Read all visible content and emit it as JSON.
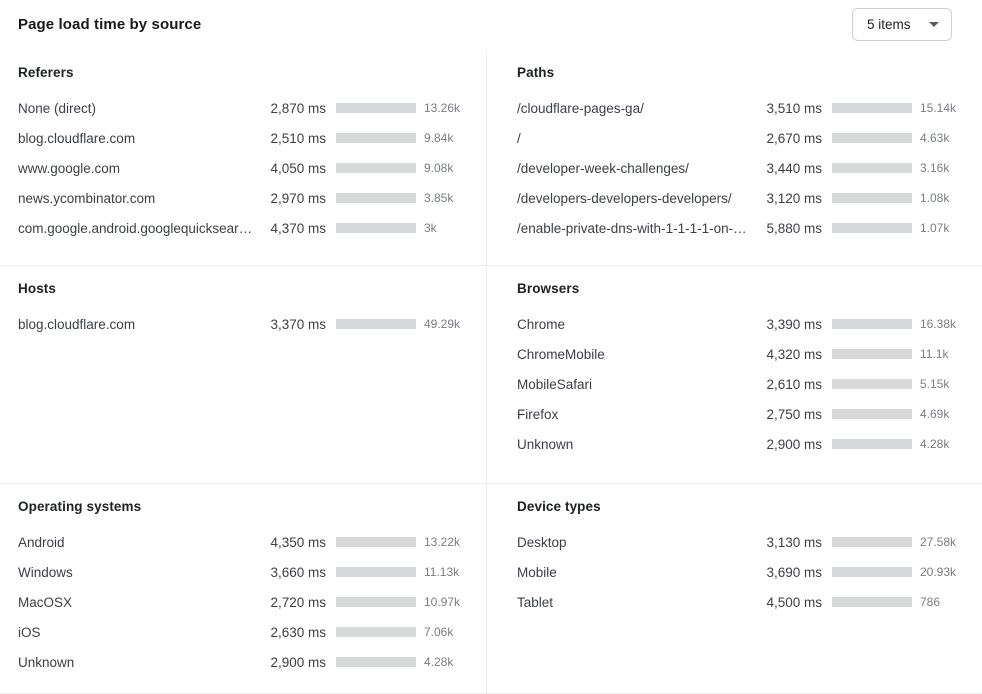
{
  "header": {
    "title": "Page load time by source",
    "dropdown": {
      "value": "5 items",
      "icon": "chevron-down"
    }
  },
  "colors": {
    "bar_fill": "#3172e9",
    "bar_track": "#d7d8da",
    "divider": "#ebecee",
    "count_text": "#787d84",
    "label_text": "#3b3f46"
  },
  "chart_data": [
    {
      "type": "bar",
      "id": "referers",
      "title": "Referers",
      "unit": "ms",
      "scale_max": 6600,
      "rows": [
        {
          "label": "None (direct)",
          "ms": 2870,
          "ms_display": "2,870 ms",
          "count": "13.26k"
        },
        {
          "label": "blog.cloudflare.com",
          "ms": 2510,
          "ms_display": "2,510 ms",
          "count": "9.84k"
        },
        {
          "label": "www.google.com",
          "ms": 4050,
          "ms_display": "4,050 ms",
          "count": "9.08k"
        },
        {
          "label": "news.ycombinator.com",
          "ms": 2970,
          "ms_display": "2,970 ms",
          "count": "3.85k"
        },
        {
          "label": "com.google.android.googlequicksearc…",
          "ms": 4370,
          "ms_display": "4,370 ms",
          "count": "3k"
        }
      ]
    },
    {
      "type": "bar",
      "id": "paths",
      "title": "Paths",
      "unit": "ms",
      "scale_max": 6450,
      "rows": [
        {
          "label": "/cloudflare-pages-ga/",
          "ms": 3510,
          "ms_display": "3,510 ms",
          "count": "15.14k"
        },
        {
          "label": "/",
          "ms": 2670,
          "ms_display": "2,670 ms",
          "count": "4.63k"
        },
        {
          "label": "/developer-week-challenges/",
          "ms": 3440,
          "ms_display": "3,440 ms",
          "count": "3.16k"
        },
        {
          "label": "/developers-developers-developers/",
          "ms": 3120,
          "ms_display": "3,120 ms",
          "count": "1.08k"
        },
        {
          "label": "/enable-private-dns-with-1-1-1-1-on-…",
          "ms": 5880,
          "ms_display": "5,880 ms",
          "count": "1.07k"
        }
      ]
    },
    {
      "type": "bar",
      "id": "hosts",
      "title": "Hosts",
      "unit": "ms",
      "scale_max": 3370,
      "rows": [
        {
          "label": "blog.cloudflare.com",
          "ms": 3370,
          "ms_display": "3,370 ms",
          "count": "49.29k"
        }
      ]
    },
    {
      "type": "bar",
      "id": "browsers",
      "title": "Browsers",
      "unit": "ms",
      "scale_max": 6000,
      "rows": [
        {
          "label": "Chrome",
          "ms": 3390,
          "ms_display": "3,390 ms",
          "count": "16.38k"
        },
        {
          "label": "ChromeMobile",
          "ms": 4320,
          "ms_display": "4,320 ms",
          "count": "11.1k"
        },
        {
          "label": "MobileSafari",
          "ms": 2610,
          "ms_display": "2,610 ms",
          "count": "5.15k"
        },
        {
          "label": "Firefox",
          "ms": 2750,
          "ms_display": "2,750 ms",
          "count": "4.69k"
        },
        {
          "label": "Unknown",
          "ms": 2900,
          "ms_display": "2,900 ms",
          "count": "4.28k"
        }
      ]
    },
    {
      "type": "bar",
      "id": "operating-systems",
      "title": "Operating systems",
      "unit": "ms",
      "scale_max": 4550,
      "rows": [
        {
          "label": "Android",
          "ms": 4350,
          "ms_display": "4,350 ms",
          "count": "13.22k"
        },
        {
          "label": "Windows",
          "ms": 3660,
          "ms_display": "3,660 ms",
          "count": "11.13k"
        },
        {
          "label": "MacOSX",
          "ms": 2720,
          "ms_display": "2,720 ms",
          "count": "10.97k"
        },
        {
          "label": "iOS",
          "ms": 2630,
          "ms_display": "2,630 ms",
          "count": "7.06k"
        },
        {
          "label": "Unknown",
          "ms": 2900,
          "ms_display": "2,900 ms",
          "count": "4.28k"
        }
      ]
    },
    {
      "type": "bar",
      "id": "device-types",
      "title": "Device types",
      "unit": "ms",
      "scale_max": 4500,
      "rows": [
        {
          "label": "Desktop",
          "ms": 3130,
          "ms_display": "3,130 ms",
          "count": "27.58k"
        },
        {
          "label": "Mobile",
          "ms": 3690,
          "ms_display": "3,690 ms",
          "count": "20.93k"
        },
        {
          "label": "Tablet",
          "ms": 4500,
          "ms_display": "4,500 ms",
          "count": "786"
        }
      ]
    }
  ]
}
